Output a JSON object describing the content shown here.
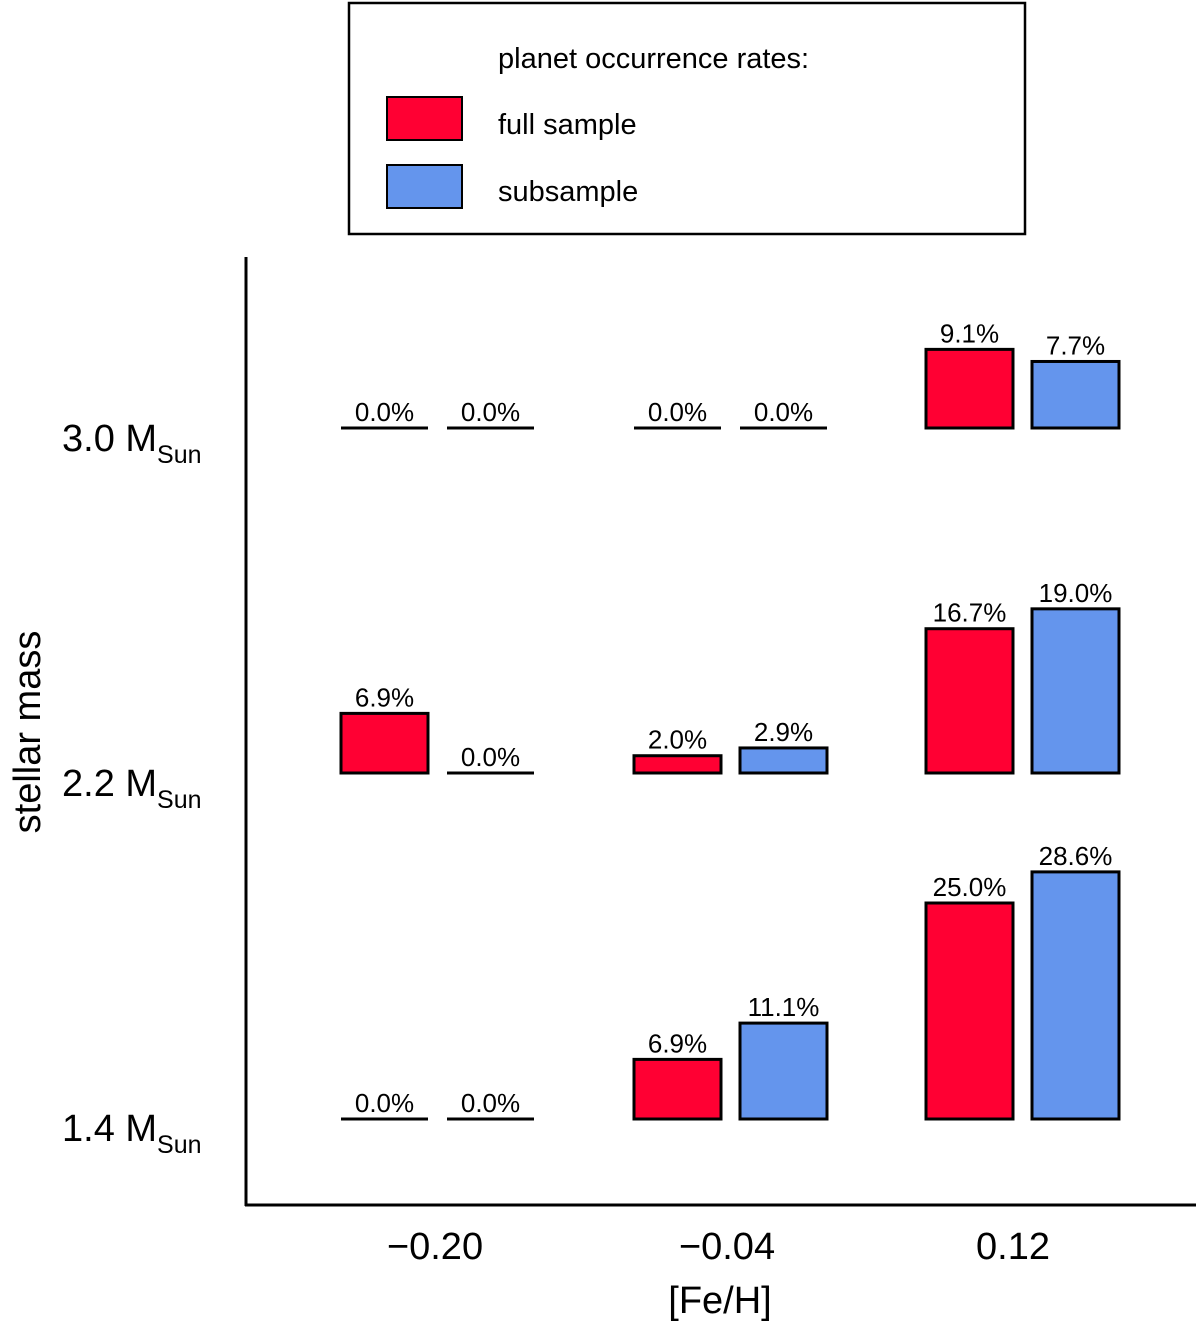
{
  "chart_data": {
    "type": "bar",
    "title": "",
    "xlabel": "[Fe/H]",
    "ylabel": "stellar mass",
    "legend": {
      "title": "planet occurrence rates:",
      "placement": "top-center",
      "entries": [
        {
          "name": "full sample",
          "color": "#ff0033"
        },
        {
          "name": "subsample",
          "color": "#6495ed"
        }
      ]
    },
    "x_categories": [
      "−0.20",
      "−0.04",
      "0.12"
    ],
    "y_categories": [
      {
        "value": "3.0",
        "unit": "M",
        "sub": "Sun"
      },
      {
        "value": "2.2",
        "unit": "M",
        "sub": "Sun"
      },
      {
        "value": "1.4",
        "unit": "M",
        "sub": "Sun"
      }
    ],
    "value_unit": "%",
    "series": [
      {
        "name": "full sample",
        "color": "#ff0033",
        "values": [
          [
            0.0,
            0.0,
            9.1
          ],
          [
            6.9,
            2.0,
            16.7
          ],
          [
            0.0,
            6.9,
            25.0
          ]
        ],
        "labels": [
          [
            "0.0%",
            "0.0%",
            "9.1%"
          ],
          [
            "6.9%",
            "2.0%",
            "16.7%"
          ],
          [
            "0.0%",
            "6.9%",
            "25.0%"
          ]
        ]
      },
      {
        "name": "subsample",
        "color": "#6495ed",
        "values": [
          [
            0.0,
            0.0,
            7.7
          ],
          [
            0.0,
            2.9,
            19.0
          ],
          [
            0.0,
            11.1,
            28.6
          ]
        ],
        "labels": [
          [
            "0.0%",
            "0.0%",
            "7.7%"
          ],
          [
            "0.0%",
            "2.9%",
            "19.0%"
          ],
          [
            "0.0%",
            "11.1%",
            "28.6%"
          ]
        ]
      }
    ],
    "grid": false
  }
}
